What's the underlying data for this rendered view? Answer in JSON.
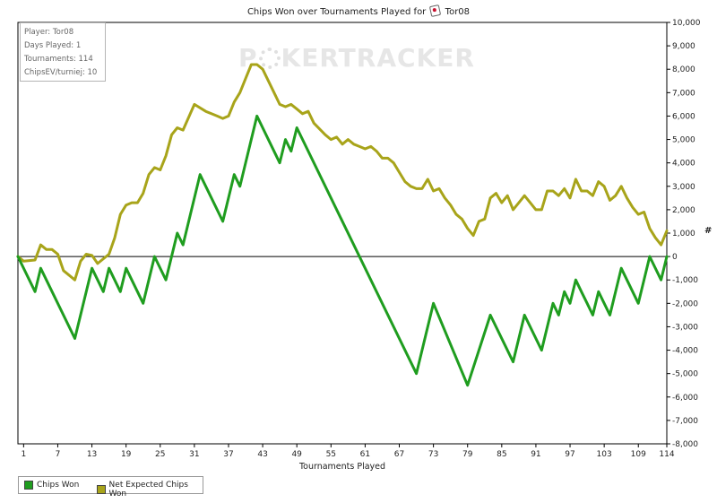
{
  "title_prefix": "Chips Won over Tournaments Played for",
  "player_name": "Tor08",
  "info": {
    "player": "Player: Tor08",
    "days": "Days Played: 1",
    "tournaments": "Tournaments: 114",
    "chipsev": "ChipsEV/turniej: 10"
  },
  "watermark": {
    "left": "P",
    "mid": "KER",
    "right": "TRACKER"
  },
  "colors": {
    "chips_won": "#1f9d1f",
    "net_expected": "#a8a41a",
    "frame": "#000000"
  },
  "chart_data": {
    "type": "line",
    "title": "Chips Won over Tournaments Played for Tor08",
    "xlabel": "Tournaments Played",
    "ylabel": "#",
    "xlim": [
      0,
      114
    ],
    "ylim": [
      -8000,
      10000
    ],
    "x_ticks": [
      1,
      7,
      13,
      19,
      25,
      31,
      37,
      43,
      49,
      55,
      61,
      67,
      73,
      79,
      85,
      91,
      97,
      103,
      109,
      114
    ],
    "y_ticks": [
      -8000,
      -7000,
      -6000,
      -5000,
      -4000,
      -3000,
      -2000,
      -1000,
      0,
      1000,
      2000,
      3000,
      4000,
      5000,
      6000,
      7000,
      8000,
      9000,
      10000
    ],
    "y_tick_labels": [
      "-8,000",
      "-7,000",
      "-6,000",
      "-5,000",
      "-4,000",
      "-3,000",
      "-2,000",
      "-1,000",
      "0",
      "1,000",
      "2,000",
      "3,000",
      "4,000",
      "5,000",
      "6,000",
      "7,000",
      "8,000",
      "9,000",
      "10,000"
    ],
    "grid": false,
    "legend_position": "bottom-left",
    "series": [
      {
        "name": "Chips Won",
        "points": [
          [
            0,
            0
          ],
          [
            3,
            -1500
          ],
          [
            4,
            -500
          ],
          [
            10,
            -3500
          ],
          [
            13,
            -500
          ],
          [
            15,
            -1500
          ],
          [
            16,
            -500
          ],
          [
            18,
            -1500
          ],
          [
            19,
            -500
          ],
          [
            22,
            -2000
          ],
          [
            24,
            0
          ],
          [
            26,
            -1000
          ],
          [
            28,
            1000
          ],
          [
            29,
            500
          ],
          [
            32,
            3500
          ],
          [
            36,
            1500
          ],
          [
            38,
            3500
          ],
          [
            39,
            3000
          ],
          [
            42,
            6000
          ],
          [
            46,
            4000
          ],
          [
            47,
            5000
          ],
          [
            48,
            4500
          ],
          [
            49,
            5500
          ],
          [
            70,
            -5000
          ],
          [
            73,
            -2000
          ],
          [
            79,
            -5500
          ],
          [
            83,
            -2500
          ],
          [
            87,
            -4500
          ],
          [
            89,
            -2500
          ],
          [
            92,
            -4000
          ],
          [
            94,
            -2000
          ],
          [
            95,
            -2500
          ],
          [
            96,
            -1500
          ],
          [
            97,
            -2000
          ],
          [
            98,
            -1000
          ],
          [
            99,
            -1500
          ],
          [
            100,
            -2000
          ],
          [
            101,
            -2500
          ],
          [
            102,
            -1500
          ],
          [
            104,
            -2500
          ],
          [
            106,
            -500
          ],
          [
            109,
            -2000
          ],
          [
            111,
            0
          ],
          [
            113,
            -1000
          ],
          [
            114,
            0
          ]
        ]
      },
      {
        "name": "Net Expected Chips Won",
        "points": [
          [
            0,
            0
          ],
          [
            1,
            -200
          ],
          [
            3,
            -150
          ],
          [
            4,
            500
          ],
          [
            5,
            300
          ],
          [
            6,
            300
          ],
          [
            7,
            100
          ],
          [
            8,
            -600
          ],
          [
            10,
            -1000
          ],
          [
            11,
            -200
          ],
          [
            12,
            100
          ],
          [
            13,
            50
          ],
          [
            14,
            -300
          ],
          [
            16,
            100
          ],
          [
            17,
            800
          ],
          [
            18,
            1800
          ],
          [
            19,
            2200
          ],
          [
            20,
            2300
          ],
          [
            21,
            2300
          ],
          [
            22,
            2700
          ],
          [
            23,
            3500
          ],
          [
            24,
            3800
          ],
          [
            25,
            3700
          ],
          [
            26,
            4300
          ],
          [
            27,
            5200
          ],
          [
            28,
            5500
          ],
          [
            29,
            5400
          ],
          [
            31,
            6500
          ],
          [
            33,
            6200
          ],
          [
            34,
            6100
          ],
          [
            35,
            6000
          ],
          [
            36,
            5900
          ],
          [
            37,
            6000
          ],
          [
            38,
            6600
          ],
          [
            39,
            7000
          ],
          [
            40,
            7600
          ],
          [
            41,
            8200
          ],
          [
            42,
            8200
          ],
          [
            43,
            8000
          ],
          [
            45,
            7000
          ],
          [
            46,
            6500
          ],
          [
            47,
            6400
          ],
          [
            48,
            6500
          ],
          [
            49,
            6300
          ],
          [
            50,
            6100
          ],
          [
            51,
            6200
          ],
          [
            52,
            5700
          ],
          [
            54,
            5200
          ],
          [
            55,
            5000
          ],
          [
            56,
            5100
          ],
          [
            57,
            4800
          ],
          [
            58,
            5000
          ],
          [
            59,
            4800
          ],
          [
            60,
            4700
          ],
          [
            61,
            4600
          ],
          [
            62,
            4700
          ],
          [
            63,
            4500
          ],
          [
            64,
            4200
          ],
          [
            65,
            4200
          ],
          [
            66,
            4000
          ],
          [
            67,
            3600
          ],
          [
            68,
            3200
          ],
          [
            69,
            3000
          ],
          [
            70,
            2900
          ],
          [
            71,
            2900
          ],
          [
            72,
            3300
          ],
          [
            73,
            2800
          ],
          [
            74,
            2900
          ],
          [
            75,
            2500
          ],
          [
            76,
            2200
          ],
          [
            77,
            1800
          ],
          [
            78,
            1600
          ],
          [
            79,
            1200
          ],
          [
            80,
            900
          ],
          [
            81,
            1500
          ],
          [
            82,
            1600
          ],
          [
            83,
            2500
          ],
          [
            84,
            2700
          ],
          [
            85,
            2300
          ],
          [
            86,
            2600
          ],
          [
            87,
            2000
          ],
          [
            88,
            2300
          ],
          [
            89,
            2600
          ],
          [
            90,
            2300
          ],
          [
            91,
            2000
          ],
          [
            92,
            2000
          ],
          [
            93,
            2800
          ],
          [
            94,
            2800
          ],
          [
            95,
            2600
          ],
          [
            96,
            2900
          ],
          [
            97,
            2500
          ],
          [
            98,
            3300
          ],
          [
            99,
            2800
          ],
          [
            100,
            2800
          ],
          [
            101,
            2600
          ],
          [
            102,
            3200
          ],
          [
            103,
            3000
          ],
          [
            104,
            2400
          ],
          [
            105,
            2600
          ],
          [
            106,
            3000
          ],
          [
            107,
            2500
          ],
          [
            108,
            2100
          ],
          [
            109,
            1800
          ],
          [
            110,
            1900
          ],
          [
            111,
            1200
          ],
          [
            112,
            800
          ],
          [
            113,
            500
          ],
          [
            114,
            1100
          ]
        ]
      }
    ]
  },
  "legend": {
    "chips_won": "Chips Won",
    "net_expected": "Net Expected Chips Won"
  }
}
